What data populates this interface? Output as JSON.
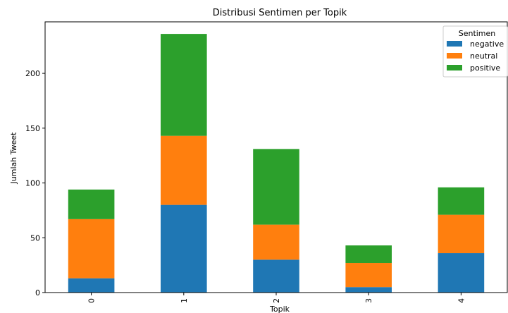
{
  "chart_data": {
    "type": "bar",
    "stacked": true,
    "title": "Distribusi Sentimen per Topik",
    "xlabel": "Topik",
    "ylabel": "Jumlah Tweet",
    "categories": [
      "0",
      "1",
      "2",
      "3",
      "4"
    ],
    "series": [
      {
        "name": "negative",
        "color": "#1f77b4",
        "values": [
          13,
          80,
          30,
          5,
          36
        ]
      },
      {
        "name": "neutral",
        "color": "#ff7f0e",
        "values": [
          54,
          63,
          32,
          22,
          35
        ]
      },
      {
        "name": "positive",
        "color": "#2ca02c",
        "values": [
          27,
          93,
          69,
          16,
          25
        ]
      }
    ],
    "ylim": [
      0,
      247
    ],
    "yticks": [
      0,
      50,
      100,
      150,
      200
    ],
    "grid": false,
    "legend": {
      "title": "Sentimen",
      "placement": "top-right"
    }
  }
}
